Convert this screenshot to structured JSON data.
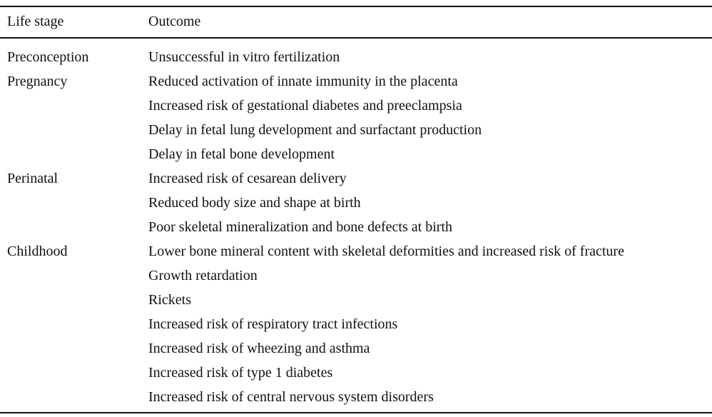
{
  "table": {
    "headers": {
      "stage": "Life stage",
      "outcome": "Outcome"
    },
    "rows": [
      {
        "stage": "Preconception",
        "outcome": "Unsuccessful in vitro fertilization"
      },
      {
        "stage": "Pregnancy",
        "outcome": "Reduced activation of innate immunity in the placenta"
      },
      {
        "stage": "",
        "outcome": "Increased risk of gestational diabetes and preeclampsia"
      },
      {
        "stage": "",
        "outcome": "Delay in fetal lung development and surfactant production"
      },
      {
        "stage": "",
        "outcome": "Delay in fetal bone development"
      },
      {
        "stage": "Perinatal",
        "outcome": "Increased risk of cesarean delivery"
      },
      {
        "stage": "",
        "outcome": "Reduced body size and shape at birth"
      },
      {
        "stage": "",
        "outcome": "Poor skeletal mineralization and bone defects at birth"
      },
      {
        "stage": "Childhood",
        "outcome": "Lower bone mineral content with skeletal deformities and increased risk of fracture"
      },
      {
        "stage": "",
        "outcome": "Growth retardation"
      },
      {
        "stage": "",
        "outcome": "Rickets"
      },
      {
        "stage": "",
        "outcome": "Increased risk of respiratory tract infections"
      },
      {
        "stage": "",
        "outcome": "Increased risk of wheezing and asthma"
      },
      {
        "stage": "",
        "outcome": "Increased risk of type 1 diabetes"
      },
      {
        "stage": "",
        "outcome": "Increased risk of central nervous system disorders"
      }
    ]
  }
}
